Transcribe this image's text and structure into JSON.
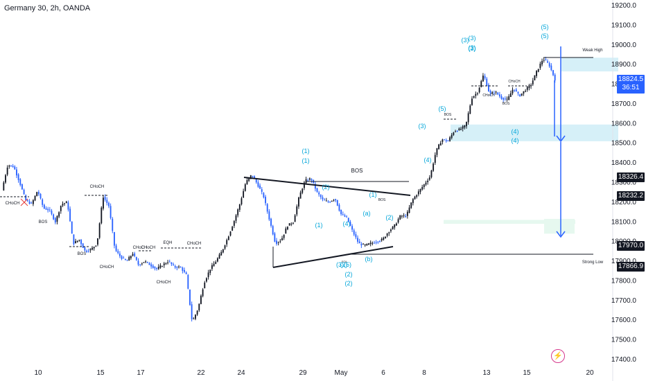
{
  "header": {
    "title": "Germany 30, 2h, OANDA"
  },
  "badges": {
    "last_price": "18824.5",
    "countdown": "36:51",
    "level_a": "18326.4",
    "level_b": "18232.2",
    "level_c": "17970.0",
    "level_d": "17866.9"
  },
  "chart_data": {
    "type": "candlestick",
    "symbol": "Germany 30",
    "timeframe": "2h",
    "broker": "OANDA",
    "ylim": [
      17400,
      19200
    ],
    "y_ticks": [
      19200,
      19100,
      19000,
      18900,
      18800,
      18700,
      18600,
      18500,
      18400,
      18300,
      18200,
      18100,
      18000,
      17900,
      17800,
      17700,
      17600,
      17500,
      17400
    ],
    "x_ticks": [
      "10",
      "15",
      "17",
      "22",
      "24",
      "29",
      "May",
      "6",
      "8",
      "13",
      "15",
      "20"
    ],
    "price_path": [
      18260,
      18390,
      18380,
      18300,
      18210,
      18190,
      18260,
      18170,
      18160,
      18100,
      18190,
      18200,
      17990,
      18010,
      17950,
      17960,
      17990,
      18230,
      18180,
      17960,
      17920,
      17900,
      17940,
      17880,
      17900,
      17880,
      17860,
      17880,
      17900,
      17870,
      17870,
      17830,
      17590,
      17660,
      17790,
      17860,
      17900,
      17950,
      18020,
      18100,
      18190,
      18300,
      18340,
      18290,
      18230,
      18110,
      17990,
      18010,
      18080,
      18100,
      18230,
      18310,
      18320,
      18250,
      18210,
      18200,
      18220,
      18140,
      18120,
      18050,
      17990,
      17980,
      17990,
      18000,
      18010,
      18050,
      18080,
      18130,
      18130,
      18210,
      18250,
      18290,
      18330,
      18460,
      18520,
      18510,
      18560,
      18570,
      18590,
      18730,
      18760,
      18850,
      18750,
      18760,
      18730,
      18720,
      18780,
      18740,
      18770,
      18800,
      18870,
      18930,
      18900,
      18825
    ],
    "annotations": [
      "CHoCH",
      "BOS",
      "CHoCH",
      "BOS",
      "CHoCH",
      "CHoCH",
      "EQH",
      "CHoCH",
      "CHoCH",
      "CHoCH",
      "BOS",
      "(1)",
      "(1)",
      "(2)",
      "(1)",
      "(3)",
      "(3)",
      "(4)",
      "(a)",
      "(1)",
      "BOS",
      "(b)",
      "(2)",
      "(2)",
      "(2)",
      "(3)(5)",
      "EQL",
      "(2)",
      "(3)",
      "(4)",
      "(5)",
      "BOS",
      "(3)",
      "(3)",
      "CHoCH",
      "CHoCH",
      "BOS",
      "(4)",
      "(4)",
      "(5)",
      "(5)",
      "Weak High",
      "Strong Low"
    ],
    "colors": {
      "up": "#131722",
      "down": "#2962ff",
      "wave": "#00a5d9",
      "zone_blue": "#d6f0f8",
      "zone_green": "#e6f8ef",
      "arrow": "#2962ff"
    }
  },
  "icons": {
    "lightning": "lightning-icon"
  }
}
